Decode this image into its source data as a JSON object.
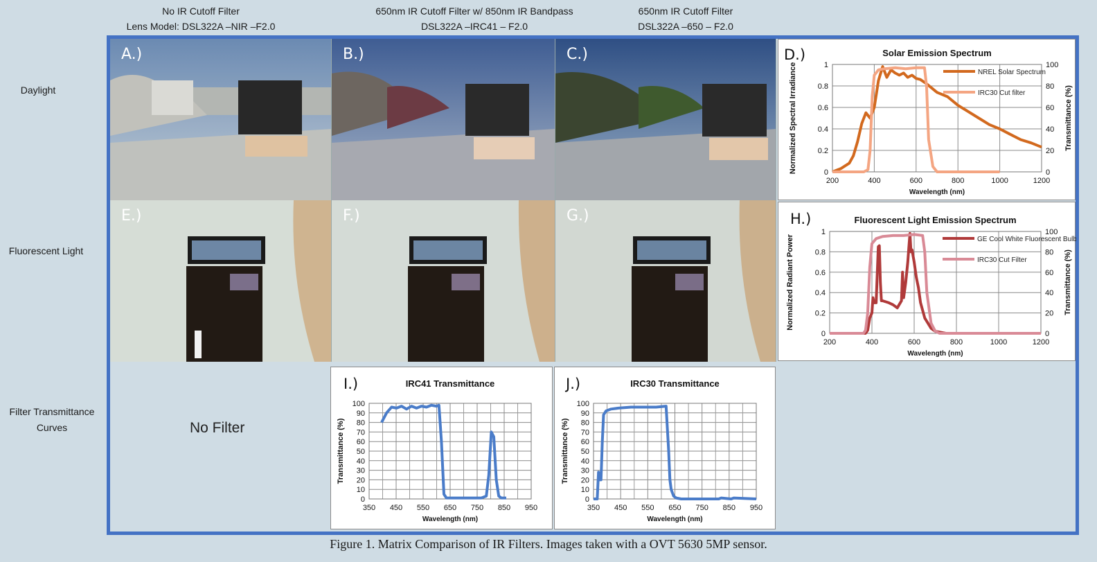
{
  "headers": [
    {
      "line1": "No IR Cutoff Filter",
      "line2": "Lens Model:  DSL322A –NIR –F2.0"
    },
    {
      "line1": "650nm IR Cutoff Filter w/ 850nm IR Bandpass",
      "line2": "DSL322A –IRC41 – F2.0"
    },
    {
      "line1": "650nm IR Cutoff Filter",
      "line2": "DSL322A –650 – F2.0"
    }
  ],
  "row_labels": {
    "daylight": "Daylight",
    "fluorescent": "Fluorescent Light",
    "filter_line1": "Filter Transmittance",
    "filter_line2": "Curves"
  },
  "panel_letters": {
    "a": "A.)",
    "b": "B.)",
    "c": "C.)",
    "d": "D.)",
    "e": "E.)",
    "f": "F.)",
    "g": "G.)",
    "h": "H.)",
    "i": "I.)",
    "j": "J.)"
  },
  "no_filter": "No Filter",
  "caption": "Figure 1.  Matrix Comparison of IR Filters.  Images taken with a OVT 5630 5MP sensor.",
  "colors": {
    "frame": "#4472c4",
    "solar": "#d2691e",
    "irc30_light": "#f4a582",
    "ge_bulb": "#b03a3a",
    "irc30_pink": "#d98a96",
    "blue": "#4a7cc9"
  },
  "chart_data": [
    {
      "type": "line",
      "title": "Solar Emission Spectrum",
      "xlabel": "Wavelength (nm)",
      "ylabel": "Normalized Spectral Irradiance",
      "y2label": "Transmittance (%)",
      "xlim": [
        200,
        1200
      ],
      "ylim": [
        0,
        1
      ],
      "y2lim": [
        0,
        100
      ],
      "xticks": [
        "200",
        "400",
        "600",
        "800",
        "1000",
        "1200"
      ],
      "yticks": [
        "0",
        "0.2",
        "0.4",
        "0.6",
        "0.8",
        "1"
      ],
      "y2ticks": [
        "0",
        "20",
        "40",
        "60",
        "80",
        "100"
      ],
      "series": [
        {
          "name": "NREL Solar Spectrum",
          "color": "#d2691e",
          "axis": "left",
          "x": [
            200,
            240,
            280,
            300,
            320,
            340,
            360,
            380,
            400,
            420,
            440,
            460,
            480,
            500,
            520,
            540,
            560,
            580,
            600,
            620,
            650,
            700,
            750,
            800,
            850,
            900,
            950,
            1000,
            1050,
            1100,
            1150,
            1200
          ],
          "y": [
            0.0,
            0.03,
            0.08,
            0.15,
            0.28,
            0.45,
            0.55,
            0.5,
            0.6,
            0.85,
            0.98,
            0.88,
            0.95,
            0.92,
            0.9,
            0.92,
            0.88,
            0.9,
            0.87,
            0.86,
            0.82,
            0.74,
            0.7,
            0.62,
            0.56,
            0.5,
            0.44,
            0.4,
            0.35,
            0.3,
            0.27,
            0.23
          ]
        },
        {
          "name": "IRC30 Cut filter",
          "color": "#f4a582",
          "axis": "right",
          "x": [
            200,
            350,
            370,
            380,
            390,
            400,
            420,
            450,
            500,
            550,
            600,
            640,
            650,
            660,
            680,
            700,
            750,
            800,
            900,
            1000
          ],
          "y": [
            0,
            0,
            2,
            20,
            70,
            90,
            95,
            96,
            97,
            96,
            97,
            97,
            80,
            30,
            5,
            0,
            0,
            0,
            0,
            0
          ]
        }
      ]
    },
    {
      "type": "line",
      "title": "Fluorescent Light Emission Spectrum",
      "xlabel": "Wavelength (nm)",
      "ylabel": "Normalized Radiant Power",
      "y2label": "Transmittance (%)",
      "xlim": [
        200,
        1200
      ],
      "ylim": [
        0,
        1
      ],
      "y2lim": [
        0,
        100
      ],
      "xticks": [
        "200",
        "400",
        "600",
        "800",
        "1000",
        "1200"
      ],
      "yticks": [
        "0",
        "0.2",
        "0.4",
        "0.6",
        "0.8",
        "1"
      ],
      "y2ticks": [
        "0",
        "20",
        "40",
        "60",
        "80",
        "100"
      ],
      "series": [
        {
          "name": "GE Cool White Fluorescent Bulb",
          "color": "#b03a3a",
          "axis": "left",
          "x": [
            200,
            370,
            380,
            390,
            400,
            405,
            410,
            420,
            430,
            435,
            440,
            445,
            450,
            480,
            500,
            520,
            540,
            545,
            550,
            560,
            570,
            575,
            580,
            585,
            590,
            600,
            610,
            620,
            630,
            650,
            680,
            700,
            750,
            1200
          ],
          "y": [
            0,
            0,
            0.03,
            0.15,
            0.2,
            0.35,
            0.3,
            0.3,
            0.85,
            0.86,
            0.5,
            0.32,
            0.32,
            0.3,
            0.28,
            0.25,
            0.32,
            0.6,
            0.35,
            0.5,
            0.7,
            0.85,
            0.98,
            0.8,
            0.82,
            0.7,
            0.55,
            0.45,
            0.3,
            0.15,
            0.05,
            0.02,
            0.0,
            0.0
          ]
        },
        {
          "name": "IRC30 Cut Filter",
          "color": "#d98a96",
          "axis": "right",
          "x": [
            200,
            360,
            370,
            380,
            390,
            400,
            420,
            450,
            500,
            550,
            600,
            640,
            650,
            660,
            680,
            700,
            720,
            1200
          ],
          "y": [
            0,
            0,
            3,
            20,
            65,
            88,
            93,
            95,
            96,
            96,
            97,
            96,
            80,
            40,
            10,
            2,
            0,
            0
          ]
        }
      ]
    },
    {
      "type": "line",
      "title": "IRC41 Transmittance",
      "xlabel": "Wavelength (nm)",
      "ylabel": "Transmittance (%)",
      "xlim": [
        350,
        1000
      ],
      "ylim": [
        0,
        100
      ],
      "xticks": [
        "350",
        "450",
        "550",
        "650",
        "750",
        "850",
        "950"
      ],
      "yticks": [
        "0",
        "10",
        "20",
        "30",
        "40",
        "50",
        "60",
        "70",
        "80",
        "90",
        "100"
      ],
      "series": [
        {
          "name": "",
          "color": "#4a7cc9",
          "x": [
            400,
            420,
            440,
            460,
            480,
            500,
            520,
            540,
            560,
            580,
            600,
            620,
            630,
            640,
            650,
            660,
            700,
            800,
            820,
            830,
            840,
            850,
            860,
            870,
            880,
            900
          ],
          "y": [
            80,
            90,
            96,
            95,
            97,
            94,
            97,
            95,
            97,
            96,
            98,
            97,
            98,
            60,
            5,
            1,
            1,
            1,
            3,
            25,
            70,
            65,
            20,
            3,
            1,
            1
          ]
        }
      ]
    },
    {
      "type": "line",
      "title": "IRC30 Transmittance",
      "xlabel": "Wavelength (nm)",
      "ylabel": "Transmittance (%)",
      "xlim": [
        350,
        1000
      ],
      "ylim": [
        0,
        100
      ],
      "xticks": [
        "350",
        "450",
        "550",
        "650",
        "750",
        "850",
        "950"
      ],
      "yticks": [
        "0",
        "10",
        "20",
        "30",
        "40",
        "50",
        "60",
        "70",
        "80",
        "90",
        "100"
      ],
      "series": [
        {
          "name": "",
          "color": "#4a7cc9",
          "x": [
            350,
            365,
            370,
            375,
            380,
            385,
            390,
            400,
            420,
            450,
            500,
            550,
            600,
            640,
            650,
            655,
            660,
            670,
            680,
            700,
            750,
            850,
            860,
            900,
            910,
            1000
          ],
          "y": [
            0,
            0,
            28,
            20,
            20,
            60,
            88,
            92,
            94,
            95,
            96,
            96,
            96,
            97,
            50,
            20,
            10,
            3,
            1,
            0,
            0,
            0,
            1,
            0,
            1,
            0
          ]
        }
      ]
    }
  ]
}
